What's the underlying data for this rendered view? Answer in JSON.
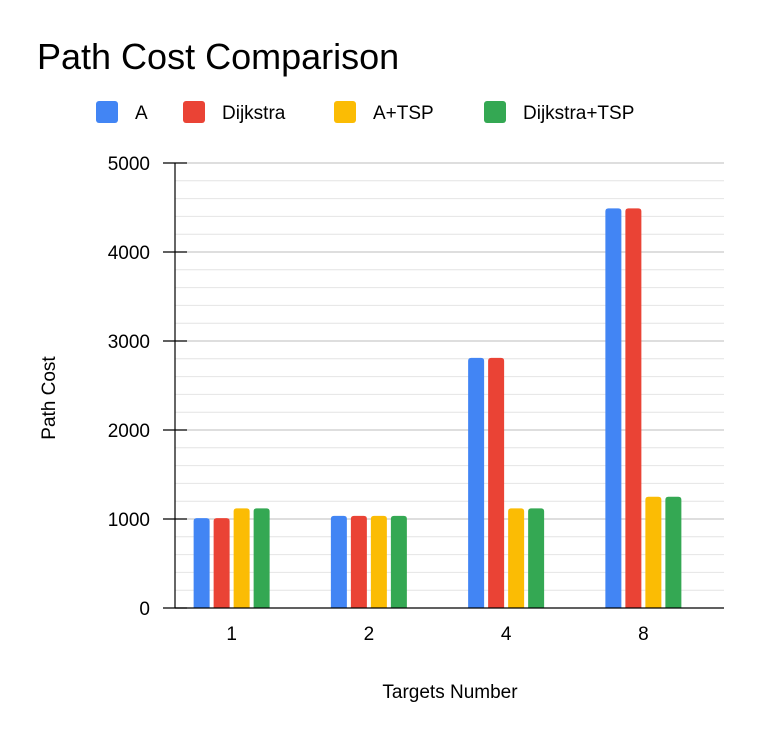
{
  "chart_data": {
    "type": "bar",
    "title": "Path Cost Comparison",
    "xlabel": "Targets Number",
    "ylabel": "Path Cost",
    "categories": [
      "1",
      "2",
      "4",
      "8"
    ],
    "series": [
      {
        "name": "A",
        "color": "#4285F4",
        "values": [
          1010,
          1035,
          2810,
          4490
        ]
      },
      {
        "name": "Dijkstra",
        "color": "#EA4335",
        "values": [
          1010,
          1035,
          2810,
          4490
        ]
      },
      {
        "name": "A+TSP",
        "color": "#FBBC04",
        "values": [
          1120,
          1035,
          1120,
          1250
        ]
      },
      {
        "name": "Dijkstra+TSP",
        "color": "#34A853",
        "values": [
          1120,
          1035,
          1120,
          1250
        ]
      }
    ],
    "ylim": [
      0,
      5000
    ],
    "yticks": [
      "0",
      "1000",
      "2000",
      "3000",
      "4000",
      "5000"
    ],
    "grid": true,
    "minor_grid": true,
    "legend_position": "top-left"
  }
}
